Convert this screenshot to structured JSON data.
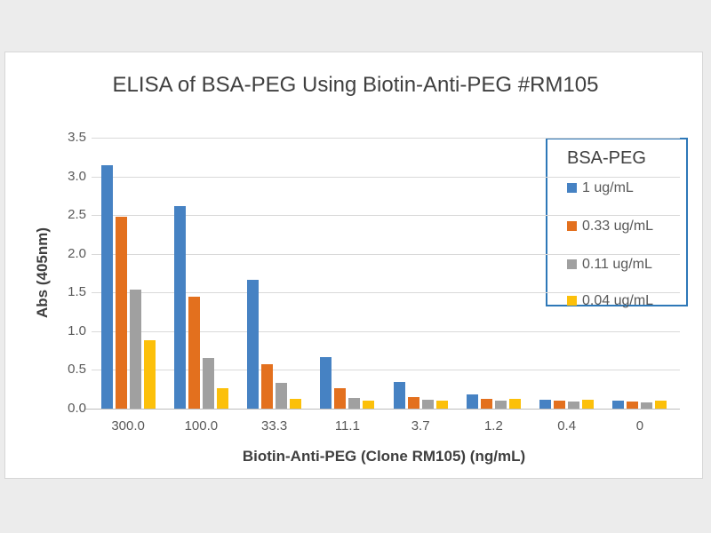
{
  "chart_data": {
    "type": "bar",
    "title": "ELISA of BSA-PEG Using Biotin-Anti-PEG #RM105",
    "xlabel": "Biotin-Anti-PEG (Clone RM105) (ng/mL)",
    "ylabel": "Abs (405nm)",
    "categories": [
      "300.0",
      "100.0",
      "33.3",
      "11.1",
      "3.7",
      "1.2",
      "0.4",
      "0"
    ],
    "series": [
      {
        "name": "1 ug/mL",
        "color": "#4682c3",
        "values": [
          3.15,
          2.62,
          1.66,
          0.67,
          0.34,
          0.18,
          0.12,
          0.1
        ]
      },
      {
        "name": "0.33 ug/mL",
        "color": "#e3701e",
        "values": [
          2.48,
          1.45,
          0.57,
          0.26,
          0.15,
          0.13,
          0.1,
          0.09
        ]
      },
      {
        "name": "0.11 ug/mL",
        "color": "#a0a0a0",
        "values": [
          1.54,
          0.65,
          0.33,
          0.14,
          0.11,
          0.1,
          0.09,
          0.08
        ]
      },
      {
        "name": "0.04 ug/mL",
        "color": "#fcc00a",
        "values": [
          0.88,
          0.26,
          0.13,
          0.1,
          0.1,
          0.13,
          0.11,
          0.1
        ]
      }
    ],
    "ylim": [
      0,
      3.5
    ],
    "ytick_step": 0.5,
    "yticks": [
      "0.0",
      "0.5",
      "1.0",
      "1.5",
      "2.0",
      "2.5",
      "3.0",
      "3.5"
    ],
    "legend_title": "BSA-PEG",
    "legend_position": "top-right",
    "grid": "horizontal"
  },
  "colors": {
    "background": "#ececec",
    "chart_background": "#ffffff",
    "gridline": "#d9d9d9",
    "axis_line": "#bdbdbd",
    "legend_border": "#2e78b8",
    "title_text": "#3f3f3f",
    "tick_text": "#595959"
  }
}
